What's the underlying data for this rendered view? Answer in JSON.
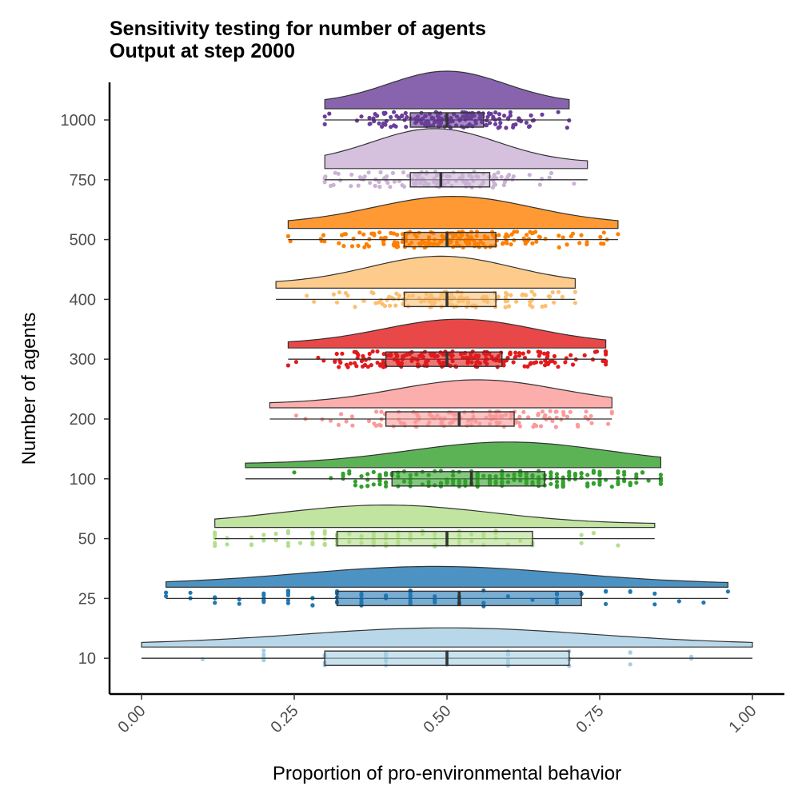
{
  "chart_data": {
    "type": "raincloud",
    "title": [
      "Sensitivity testing for number of agents",
      "Output at step 2000"
    ],
    "xlabel": "Proportion of pro-environmental behavior",
    "ylabel": "Number of agents",
    "xlim": [
      0,
      1
    ],
    "xticks": [
      0,
      0.25,
      0.5,
      0.75,
      1
    ],
    "xtick_labels": [
      "0.00",
      "0.25",
      "0.50",
      "0.75",
      "1.00"
    ],
    "categories": [
      "1000",
      "750",
      "500",
      "400",
      "300",
      "200",
      "100",
      "50",
      "25",
      "10"
    ],
    "series": [
      {
        "agents": "1000",
        "color": "#6a3d9a",
        "fill_opacity": 0.8,
        "min": 0.3,
        "q1": 0.44,
        "median": 0.5,
        "q3": 0.56,
        "max": 0.7,
        "density_mode": 0.5,
        "density_height": 47,
        "n_points": 160,
        "discrete_step": null
      },
      {
        "agents": "750",
        "color": "#cab2d6",
        "fill_opacity": 0.8,
        "min": 0.3,
        "q1": 0.44,
        "median": 0.49,
        "q3": 0.57,
        "max": 0.73,
        "density_mode": 0.48,
        "density_height": 50,
        "n_points": 130,
        "discrete_step": null
      },
      {
        "agents": "500",
        "color": "#ff7f00",
        "fill_opacity": 0.8,
        "min": 0.24,
        "q1": 0.43,
        "median": 0.5,
        "q3": 0.58,
        "max": 0.78,
        "density_mode": 0.51,
        "density_height": 40,
        "n_points": 190,
        "discrete_step": null
      },
      {
        "agents": "400",
        "color": "#fdbf6f",
        "fill_opacity": 0.8,
        "min": 0.22,
        "q1": 0.43,
        "median": 0.5,
        "q3": 0.58,
        "max": 0.71,
        "density_mode": 0.49,
        "density_height": 40,
        "n_points": 130,
        "discrete_step": null
      },
      {
        "agents": "300",
        "color": "#e31a1c",
        "fill_opacity": 0.8,
        "min": 0.24,
        "q1": 0.4,
        "median": 0.5,
        "q3": 0.59,
        "max": 0.76,
        "density_mode": 0.52,
        "density_height": 36,
        "n_points": 210,
        "discrete_step": null
      },
      {
        "agents": "200",
        "color": "#fb9a99",
        "fill_opacity": 0.8,
        "min": 0.21,
        "q1": 0.4,
        "median": 0.52,
        "q3": 0.61,
        "max": 0.77,
        "density_mode": 0.55,
        "density_height": 35,
        "n_points": 130,
        "discrete_step": null
      },
      {
        "agents": "100",
        "color": "#33a02c",
        "fill_opacity": 0.8,
        "min": 0.17,
        "q1": 0.41,
        "median": 0.54,
        "q3": 0.66,
        "max": 0.85,
        "density_mode": 0.6,
        "density_height": 32,
        "n_points": 230,
        "discrete_step": 0.01
      },
      {
        "agents": "50",
        "color": "#b2df8a",
        "fill_opacity": 0.8,
        "min": 0.12,
        "q1": 0.32,
        "median": 0.5,
        "q3": 0.64,
        "max": 0.84,
        "density_mode": 0.4,
        "density_height": 28,
        "n_points": 110,
        "discrete_step": 0.02
      },
      {
        "agents": "25",
        "color": "#1f78b4",
        "fill_opacity": 0.8,
        "min": 0.04,
        "q1": 0.32,
        "median": 0.52,
        "q3": 0.72,
        "max": 0.96,
        "density_mode": 0.48,
        "density_height": 26,
        "n_points": 90,
        "discrete_step": 0.04
      },
      {
        "agents": "10",
        "color": "#a6cee3",
        "fill_opacity": 0.8,
        "min": 0.0,
        "q1": 0.3,
        "median": 0.5,
        "q3": 0.7,
        "max": 1.0,
        "density_mode": 0.5,
        "density_height": 24,
        "n_points": 50,
        "discrete_step": 0.1
      }
    ],
    "grid": false,
    "legend": "none"
  }
}
